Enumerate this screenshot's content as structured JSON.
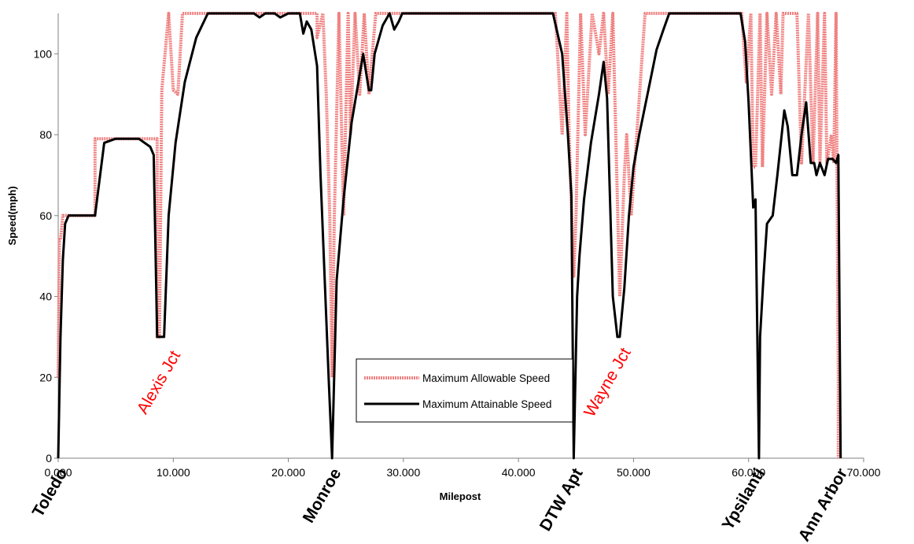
{
  "chart_data": {
    "type": "line",
    "xlabel": "Milepost",
    "ylabel": "Speed(mph)",
    "xlim": [
      0,
      70
    ],
    "ylim": [
      0,
      110
    ],
    "x_ticks": [
      "0.000",
      "10.000",
      "20.000",
      "30.000",
      "40.000",
      "50.000",
      "60.000",
      "70.000"
    ],
    "y_ticks": [
      "0",
      "20",
      "40",
      "60",
      "80",
      "100"
    ],
    "legend_position": "center-right inside plot",
    "colors": {
      "allowable": "#f08080",
      "attainable": "#000000",
      "junction_label": "#ff0000"
    },
    "stations": [
      {
        "name": "Toledo",
        "x": 0
      },
      {
        "name": "Monroe",
        "x": 23.8
      },
      {
        "name": "DTW Apt",
        "x": 44.8
      },
      {
        "name": "Ypsilanti",
        "x": 60.6
      },
      {
        "name": "Ann Arbor",
        "x": 67.8
      }
    ],
    "junctions": [
      {
        "name": "Alexis Jct",
        "x": 10.5,
        "y": 22
      },
      {
        "name": "Wayne Jct",
        "x": 49.5,
        "y": 22
      }
    ],
    "series": [
      {
        "name": "Maximum Allowable Speed",
        "x": [
          0,
          0.1,
          0.2,
          0.4,
          0.6,
          3.2,
          3.2,
          8.6,
          8.6,
          8.8,
          9.0,
          9.0,
          9.6,
          10.0,
          10.4,
          10.4,
          10.8,
          11.6,
          11.6,
          21.5,
          21.5,
          22.5,
          22.5,
          23.0,
          23.3,
          23.6,
          23.8,
          24.0,
          24.4,
          24.8,
          24.8,
          25.2,
          25.4,
          25.4,
          25.8,
          26.2,
          26.6,
          27.0,
          27.0,
          27.6,
          28.2,
          28.2,
          28.8,
          29.4,
          29.4,
          30.0,
          43.2,
          43.2,
          43.8,
          44.2,
          44.4,
          44.8,
          45.0,
          45.4,
          45.8,
          45.8,
          46.4,
          47.0,
          47.4,
          47.8,
          48.2,
          48.8,
          49.2,
          49.4,
          49.8,
          49.8,
          51.0,
          53.0,
          59.4,
          59.4,
          59.8,
          60.2,
          60.4,
          60.6,
          61.0,
          61.2,
          61.2,
          61.6,
          62.0,
          62.4,
          62.8,
          63.0,
          64.2,
          64.6,
          64.6,
          65.2,
          65.6,
          65.6,
          66.0,
          66.2,
          66.6,
          66.8,
          67.2,
          67.4,
          67.6,
          67.8,
          67.8
        ],
        "y": [
          20,
          54,
          54,
          60,
          60,
          60,
          79,
          79,
          30,
          30,
          91,
          91,
          110,
          91,
          90,
          90,
          110,
          110,
          110,
          110,
          110,
          110,
          104,
          110,
          90,
          60,
          20,
          60,
          110,
          60,
          60,
          110,
          80,
          80,
          110,
          90,
          110,
          90,
          90,
          110,
          110,
          110,
          110,
          110,
          110,
          110,
          110,
          110,
          80,
          110,
          80,
          45,
          60,
          110,
          80,
          80,
          110,
          100,
          110,
          90,
          110,
          40,
          70,
          80,
          60,
          60,
          110,
          110,
          110,
          110,
          93,
          110,
          72,
          72,
          110,
          72,
          72,
          110,
          90,
          110,
          90,
          110,
          110,
          73,
          73,
          110,
          73,
          73,
          110,
          73,
          110,
          73,
          80,
          73,
          110,
          20,
          0
        ]
      },
      {
        "name": "Maximum Attainable Speed",
        "x": [
          0,
          0.2,
          0.4,
          0.6,
          0.9,
          3.2,
          4.0,
          5.0,
          6.0,
          7.0,
          8.0,
          8.3,
          8.6,
          9.2,
          9.6,
          10.2,
          11.0,
          12.0,
          13.0,
          17.0,
          17.5,
          18.0,
          18.8,
          19.3,
          20.0,
          21.0,
          21.3,
          21.6,
          22.0,
          22.5,
          22.8,
          23.5,
          23.8,
          24.2,
          24.8,
          25.5,
          26.5,
          27.0,
          27.2,
          27.5,
          28.2,
          28.8,
          29.2,
          29.6,
          29.9,
          30.3,
          43.0,
          43.8,
          44.3,
          44.6,
          44.8,
          45.1,
          45.3,
          45.7,
          46.3,
          47.0,
          47.4,
          47.7,
          48.2,
          48.6,
          48.8,
          49.2,
          49.6,
          50.0,
          50.5,
          51.5,
          52.0,
          52.6,
          53.1,
          59.0,
          59.3,
          59.7,
          60.0,
          60.4,
          60.6,
          60.9,
          61.0,
          61.3,
          61.6,
          62.1,
          62.5,
          62.8,
          63.1,
          63.4,
          63.8,
          64.2,
          64.6,
          65.0,
          65.4,
          65.7,
          65.9,
          66.2,
          66.6,
          66.9,
          67.3,
          67.6,
          67.8,
          68.0
        ],
        "y": [
          0,
          30,
          49,
          58,
          60,
          60,
          78,
          79,
          79,
          79,
          77,
          75,
          30,
          30,
          60,
          78,
          93,
          104,
          110,
          110,
          109,
          110,
          110,
          109,
          110,
          110,
          105,
          108,
          106,
          97,
          70,
          20,
          0,
          44,
          64,
          83,
          100,
          91,
          91,
          100,
          107,
          110,
          106,
          108,
          110,
          110,
          110,
          100,
          80,
          65,
          0,
          40,
          50,
          64,
          78,
          90,
          98,
          89,
          40,
          30,
          30,
          42,
          60,
          72,
          80,
          94,
          101,
          106,
          110,
          110,
          110,
          103,
          88,
          62,
          64,
          0,
          30,
          45,
          58,
          60,
          70,
          78,
          86,
          82,
          70,
          70,
          80,
          88,
          73,
          73,
          70,
          73,
          70,
          74,
          74,
          73,
          75,
          0
        ]
      }
    ]
  }
}
